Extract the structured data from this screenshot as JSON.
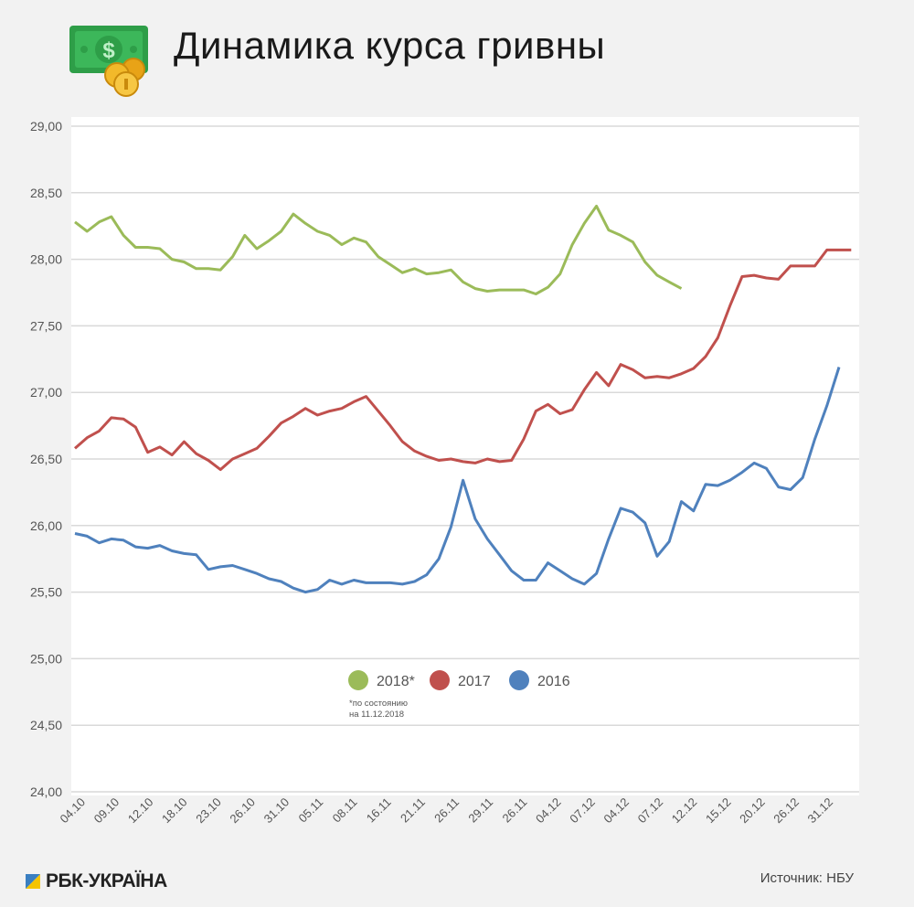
{
  "header": {
    "title": "Динамика курса гривны",
    "icon": "money-bill-coins-icon"
  },
  "footer": {
    "brand": "РБК-УКРАЇНА",
    "source": "Источник: НБУ"
  },
  "chart_data": {
    "type": "line",
    "title": "Динамика курса гривны",
    "xlabel": "",
    "ylabel": "",
    "ylim": [
      24.0,
      29.0
    ],
    "y_ticks": [
      "24,00",
      "24,50",
      "25,00",
      "25,50",
      "26,00",
      "26,50",
      "27,00",
      "27,50",
      "28,00",
      "28,50",
      "29,00"
    ],
    "x_tick_labels": [
      "04.10",
      "09.10",
      "12.10",
      "18.10",
      "23.10",
      "26.10",
      "31.10",
      "05.11",
      "08.11",
      "16.11",
      "21.11",
      "26.11",
      "29.11",
      "26.11",
      "04.12",
      "07.12",
      "04.12",
      "07.12",
      "12.12",
      "15.12",
      "20.12",
      "26.12",
      "31.12"
    ],
    "grid": true,
    "legend_placement": "bottom-center",
    "legend_note": "*по состоянию на 11.12.2018",
    "series": [
      {
        "name": "2018*",
        "color": "#9bbb59",
        "values": [
          28.28,
          28.21,
          28.28,
          28.32,
          28.18,
          28.09,
          28.09,
          28.08,
          28.0,
          27.98,
          27.93,
          27.93,
          27.92,
          28.02,
          28.18,
          28.08,
          28.14,
          28.21,
          28.34,
          28.27,
          28.21,
          28.18,
          28.11,
          28.16,
          28.13,
          28.02,
          27.96,
          27.9,
          27.93,
          27.89,
          27.9,
          27.92,
          27.83,
          27.78,
          27.76,
          27.77,
          27.77,
          27.77,
          27.74,
          27.79,
          27.89,
          28.11,
          28.27,
          28.4,
          28.22,
          28.18,
          28.13,
          27.98,
          27.88,
          27.83,
          27.78
        ]
      },
      {
        "name": "2017",
        "color": "#c0504d",
        "values": [
          26.58,
          26.66,
          26.71,
          26.81,
          26.8,
          26.74,
          26.55,
          26.59,
          26.53,
          26.63,
          26.54,
          26.49,
          26.42,
          26.5,
          26.54,
          26.58,
          26.67,
          26.77,
          26.82,
          26.88,
          26.83,
          26.86,
          26.88,
          26.93,
          26.97,
          26.86,
          26.75,
          26.63,
          26.56,
          26.52,
          26.49,
          26.5,
          26.48,
          26.47,
          26.5,
          26.48,
          26.49,
          26.65,
          26.86,
          26.91,
          26.84,
          26.87,
          27.02,
          27.15,
          27.05,
          27.21,
          27.17,
          27.11,
          27.12,
          27.11,
          27.14,
          27.18,
          27.27,
          27.41,
          27.65,
          27.87,
          27.88,
          27.86,
          27.85,
          27.95,
          27.95,
          27.95,
          28.07,
          28.07,
          28.07
        ]
      },
      {
        "name": "2016",
        "color": "#4f81bd",
        "values": [
          25.94,
          25.92,
          25.87,
          25.9,
          25.89,
          25.84,
          25.83,
          25.85,
          25.81,
          25.79,
          25.78,
          25.67,
          25.69,
          25.7,
          25.67,
          25.64,
          25.6,
          25.58,
          25.53,
          25.5,
          25.52,
          25.59,
          25.56,
          25.59,
          25.57,
          25.57,
          25.57,
          25.56,
          25.58,
          25.63,
          25.75,
          25.99,
          26.34,
          26.05,
          25.9,
          25.78,
          25.66,
          25.59,
          25.59,
          25.72,
          25.66,
          25.6,
          25.56,
          25.64,
          25.9,
          26.13,
          26.1,
          26.02,
          25.77,
          25.88,
          26.18,
          26.11,
          26.31,
          26.3,
          26.34,
          26.4,
          26.47,
          26.43,
          26.29,
          26.27,
          26.36,
          26.65,
          26.9,
          27.19
        ]
      }
    ]
  }
}
